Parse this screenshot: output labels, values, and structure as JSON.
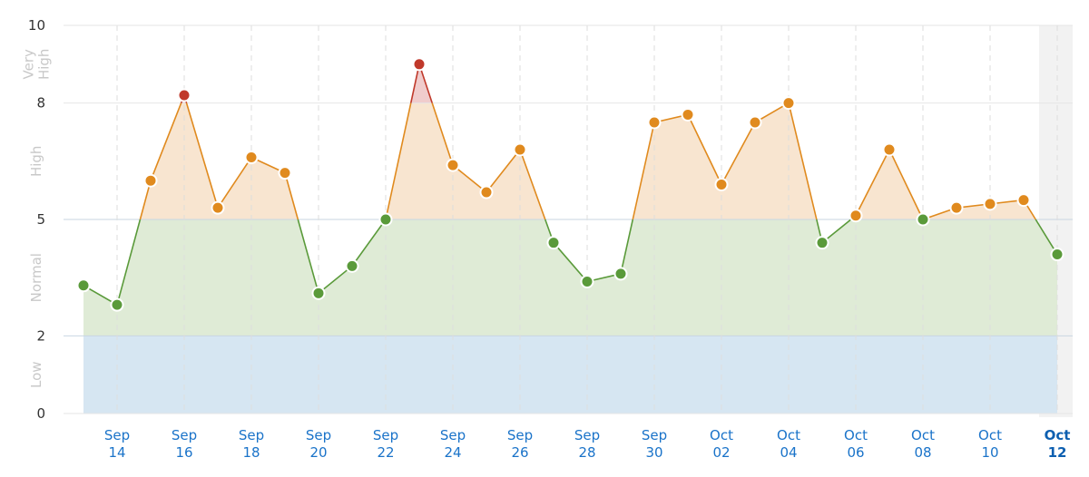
{
  "chart_data": {
    "type": "line",
    "x": [
      "Sep 13",
      "Sep 14",
      "Sep 15",
      "Sep 16",
      "Sep 17",
      "Sep 18",
      "Sep 19",
      "Sep 20",
      "Sep 21",
      "Sep 22",
      "Sep 23",
      "Sep 24",
      "Sep 25",
      "Sep 26",
      "Sep 27",
      "Sep 28",
      "Sep 29",
      "Sep 30",
      "Oct 01",
      "Oct 02",
      "Oct 03",
      "Oct 04",
      "Oct 05",
      "Oct 06",
      "Oct 07",
      "Oct 08",
      "Oct 09",
      "Oct 10",
      "Oct 11",
      "Oct 12"
    ],
    "x_tick_labels": [
      {
        "line1": "Sep",
        "line2": "14"
      },
      {
        "line1": "Sep",
        "line2": "16"
      },
      {
        "line1": "Sep",
        "line2": "18"
      },
      {
        "line1": "Sep",
        "line2": "20"
      },
      {
        "line1": "Sep",
        "line2": "22"
      },
      {
        "line1": "Sep",
        "line2": "24"
      },
      {
        "line1": "Sep",
        "line2": "26"
      },
      {
        "line1": "Sep",
        "line2": "28"
      },
      {
        "line1": "Sep",
        "line2": "30"
      },
      {
        "line1": "Oct",
        "line2": "02"
      },
      {
        "line1": "Oct",
        "line2": "04"
      },
      {
        "line1": "Oct",
        "line2": "06"
      },
      {
        "line1": "Oct",
        "line2": "08"
      },
      {
        "line1": "Oct",
        "line2": "10"
      },
      {
        "line1": "Oct",
        "line2": "12"
      }
    ],
    "values": [
      3.3,
      2.8,
      6.0,
      8.2,
      5.3,
      6.6,
      6.2,
      3.1,
      3.8,
      5.0,
      9.0,
      6.4,
      5.7,
      6.8,
      4.4,
      3.4,
      3.6,
      7.5,
      7.7,
      5.9,
      7.5,
      8.0,
      4.4,
      5.1,
      6.8,
      5.0,
      5.3,
      5.4,
      5.5,
      4.1
    ],
    "y_ticks": [
      0,
      2,
      5,
      8,
      10
    ],
    "ylim": [
      0,
      10
    ],
    "bands": [
      {
        "label": "Low",
        "from": 0,
        "to": 2,
        "fill": "#d6e6f2",
        "dot": "#4a8fd0"
      },
      {
        "label": "Normal",
        "from": 2,
        "to": 5,
        "fill": "#dfebd6",
        "dot": "#5a9a3a"
      },
      {
        "label": "High",
        "from": 5,
        "to": 8,
        "fill": "#f8e5d0",
        "dot": "#e08a1e"
      },
      {
        "label": "Very High",
        "from": 8,
        "to": 10,
        "fill": "#f0cccc",
        "dot": "#c0392b"
      }
    ],
    "band_labels": [
      {
        "lines": [
          "Low"
        ],
        "center": 1
      },
      {
        "lines": [
          "Normal"
        ],
        "center": 3.5
      },
      {
        "lines": [
          "High"
        ],
        "center": 6.5
      },
      {
        "lines": [
          "Very",
          "High"
        ],
        "center": 9
      }
    ],
    "line_colors": {
      "normal": "#5a9a3a",
      "high": "#e08a1e",
      "very_high": "#c0392b"
    },
    "highlighted_last_point": true,
    "grid": true
  }
}
